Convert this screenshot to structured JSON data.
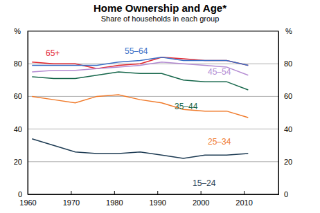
{
  "chart_data": {
    "type": "line",
    "title": "Home Ownership and Age*",
    "subtitle": "Share of households in each group",
    "y_label": "%",
    "x": [
      1961,
      1966,
      1971,
      1976,
      1981,
      1986,
      1991,
      1996,
      2001,
      2006,
      2011
    ],
    "series": [
      {
        "name": "65+",
        "color": "#e3262e",
        "values": [
          81,
          80,
          80,
          77,
          79,
          80,
          84,
          83,
          82,
          82,
          79
        ]
      },
      {
        "name": "55–64",
        "color": "#3a6fc6",
        "values": [
          79,
          79,
          79,
          79,
          81,
          82,
          84,
          82,
          82,
          82,
          79
        ]
      },
      {
        "name": "45–54",
        "color": "#b48cd2",
        "values": [
          75,
          76,
          76,
          77,
          78,
          79,
          81,
          80,
          79,
          78,
          73
        ]
      },
      {
        "name": "35–44",
        "color": "#15664a",
        "values": [
          72,
          71,
          71,
          73,
          75,
          74,
          74,
          70,
          69,
          69,
          64
        ]
      },
      {
        "name": "25–34",
        "color": "#f07a2a",
        "values": [
          60,
          58,
          56,
          60,
          61,
          58,
          56,
          52,
          51,
          51,
          47
        ]
      },
      {
        "name": "15–24",
        "color": "#1c3a52",
        "values": [
          34,
          30,
          26,
          25,
          25,
          26,
          24,
          22,
          24,
          24,
          25
        ]
      }
    ],
    "xlim": [
      1960,
      2018
    ],
    "xticks": [
      1960,
      1970,
      1980,
      1990,
      2000,
      2010
    ],
    "ylim": [
      0,
      100
    ],
    "yticks": [
      0,
      20,
      40,
      60,
      80
    ],
    "grid": true
  }
}
